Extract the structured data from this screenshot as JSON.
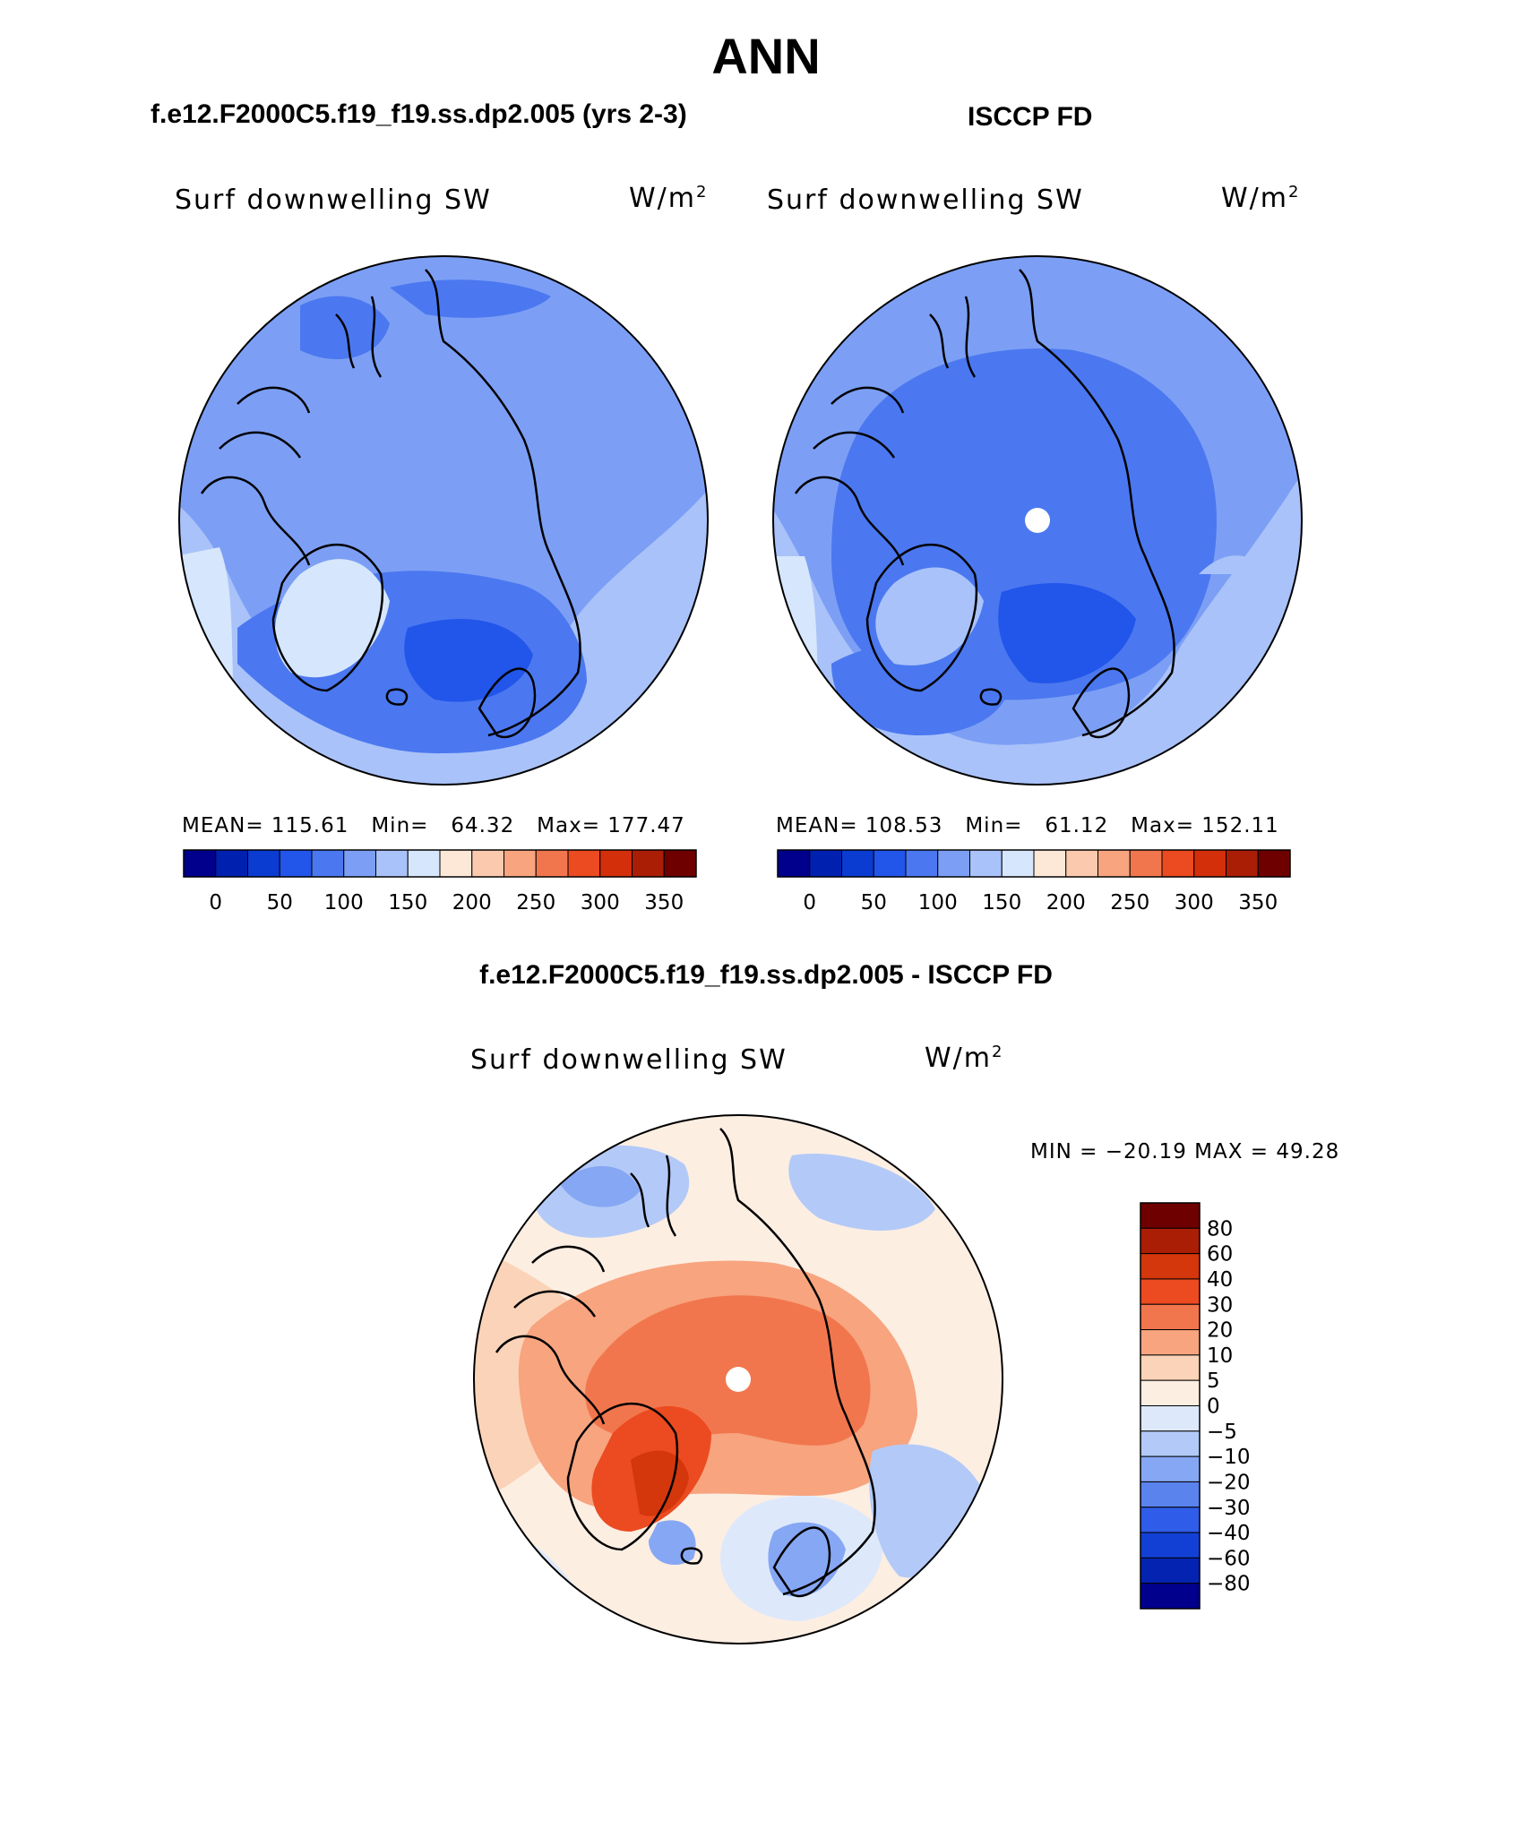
{
  "title": "ANN",
  "panels": [
    {
      "name": "model",
      "header": "f.e12.F2000C5.f19_f19.ss.dp2.005 (yrs 2-3)",
      "variable": "Surf downwelling SW",
      "units_base": "W/m",
      "units_exp": "2",
      "stats": {
        "mean_label": "MEAN=",
        "mean": "115.61",
        "min_label": "Min=",
        "min": "64.32",
        "max_label": "Max=",
        "max": "177.47"
      },
      "has_pole_hole": false
    },
    {
      "name": "obs",
      "header": "ISCCP FD",
      "variable": "Surf downwelling SW",
      "units_base": "W/m",
      "units_exp": "2",
      "stats": {
        "mean_label": "MEAN=",
        "mean": "108.53",
        "min_label": "Min=",
        "min": "61.12",
        "max_label": "Max=",
        "max": "152.11"
      },
      "has_pole_hole": true
    }
  ],
  "diff_panel": {
    "header": "f.e12.F2000C5.f19_f19.ss.dp2.005 - ISCCP FD",
    "variable": "Surf downwelling SW",
    "units_base": "W/m",
    "units_exp": "2",
    "stats_text": "MIN = −20.19 MAX =  49.28"
  },
  "colorbars": {
    "sequential": {
      "colors": [
        "#00008c",
        "#0021b0",
        "#0a3cd2",
        "#2255ea",
        "#4b78f0",
        "#7c9ff5",
        "#a9c2f9",
        "#d6e6fc",
        "#fde8d8",
        "#fbc9ad",
        "#f7a47f",
        "#f2764d",
        "#ec4a20",
        "#d32f0a",
        "#a91e05",
        "#6e0000"
      ],
      "labels": [
        "0",
        "50",
        "100",
        "150",
        "200",
        "250",
        "300",
        "350"
      ]
    },
    "diverging": {
      "colors": [
        "#6e0000",
        "#a91e05",
        "#d3370b",
        "#ec4a20",
        "#f2764d",
        "#f7a47f",
        "#fbd3b8",
        "#fdeee2",
        "#dde9fb",
        "#b3caf8",
        "#86a7f3",
        "#5a83ee",
        "#2f5ce8",
        "#1240d5",
        "#0423b0",
        "#00008c"
      ],
      "labels": [
        "80",
        "60",
        "40",
        "30",
        "20",
        "10",
        "5",
        "0",
        "−5",
        "−10",
        "−20",
        "−30",
        "−40",
        "−60",
        "−80"
      ]
    }
  },
  "chart_data": [
    {
      "type": "heatmap",
      "title": "f.e12.F2000C5.f19_f19.ss.dp2.005 (yrs 2-3)",
      "variable": "Surf downwelling SW",
      "units": "W/m2",
      "mean": 115.61,
      "min": 64.32,
      "max": 177.47,
      "colorbar_levels": [
        0,
        50,
        100,
        150,
        200,
        250,
        300,
        350
      ],
      "projection": "north polar stereographic"
    },
    {
      "type": "heatmap",
      "title": "ISCCP FD",
      "variable": "Surf downwelling SW",
      "units": "W/m2",
      "mean": 108.53,
      "min": 61.12,
      "max": 152.11,
      "colorbar_levels": [
        0,
        50,
        100,
        150,
        200,
        250,
        300,
        350
      ],
      "projection": "north polar stereographic"
    },
    {
      "type": "heatmap",
      "title": "f.e12.F2000C5.f19_f19.ss.dp2.005 - ISCCP FD",
      "variable": "Surf downwelling SW",
      "units": "W/m2",
      "min": -20.19,
      "max": 49.28,
      "colorbar_levels": [
        80,
        60,
        40,
        30,
        20,
        10,
        5,
        0,
        -5,
        -10,
        -20,
        -30,
        -40,
        -60,
        -80
      ],
      "projection": "north polar stereographic"
    }
  ]
}
